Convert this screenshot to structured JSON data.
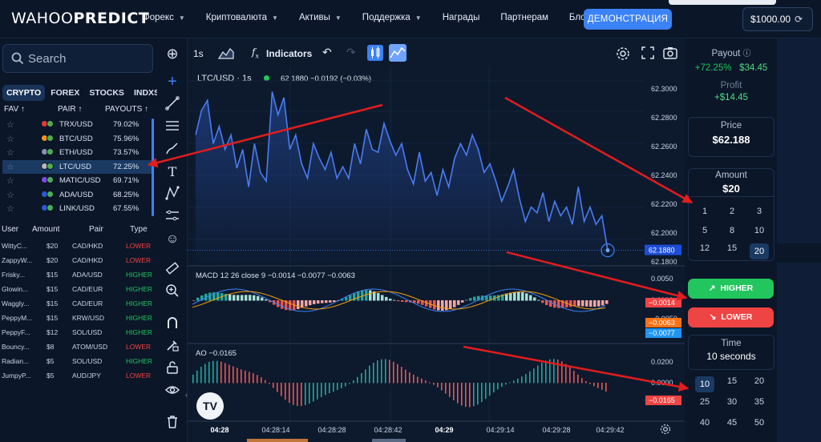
{
  "header": {
    "logo_part1": "WAHOO",
    "logo_part2": "PREDICT",
    "nav": [
      {
        "label": "Форекс",
        "dropdown": true
      },
      {
        "label": "Криптовалюта",
        "dropdown": true
      },
      {
        "label": "Активы",
        "dropdown": true
      },
      {
        "label": "Поддержка",
        "dropdown": true
      },
      {
        "label": "Награды",
        "dropdown": false
      },
      {
        "label": "Партнерам",
        "dropdown": false
      },
      {
        "label": "Блог",
        "dropdown": false
      }
    ],
    "demo_button": "ДЕМОНСТРАЦИЯ",
    "balance": "$1000.00",
    "refresh_icon": "refresh-icon"
  },
  "left": {
    "search_placeholder": "Search",
    "tabs": [
      "CRYPTO",
      "FOREX",
      "STOCKS",
      "INDXS"
    ],
    "active_tab": "CRYPTO",
    "columns": {
      "fav": "FAV ↑",
      "pair": "PAIR ↑",
      "payouts": "PAYOUTS ↑"
    },
    "pairs": [
      {
        "pair": "TRX/USD",
        "payout": "79.02%",
        "coin": "#e53935",
        "selected": false
      },
      {
        "pair": "BTC/USD",
        "payout": "75.96%",
        "coin": "#f7931a",
        "selected": false
      },
      {
        "pair": "ETH/USD",
        "payout": "73.57%",
        "coin": "#8a92b2",
        "selected": false
      },
      {
        "pair": "LTC/USD",
        "payout": "72.25%",
        "coin": "#b8b8b8",
        "selected": true
      },
      {
        "pair": "MATIC/USD",
        "payout": "69.71%",
        "coin": "#8247e5",
        "selected": false
      },
      {
        "pair": "ADA/USD",
        "payout": "68.25%",
        "coin": "#2a5bd7",
        "selected": false
      },
      {
        "pair": "LINK/USD",
        "payout": "67.55%",
        "coin": "#2a5ada",
        "selected": false
      }
    ],
    "trades_columns": {
      "user": "User",
      "amount": "Amount",
      "pair": "Pair",
      "type": "Type"
    },
    "trades": [
      {
        "user": "WittyC...",
        "amount": "$20",
        "pair": "CAD/HKD",
        "type": "LOWER"
      },
      {
        "user": "ZappyW...",
        "amount": "$20",
        "pair": "CAD/HKD",
        "type": "LOWER"
      },
      {
        "user": "Frisky...",
        "amount": "$15",
        "pair": "ADA/USD",
        "type": "HIGHER"
      },
      {
        "user": "Glowin...",
        "amount": "$15",
        "pair": "CAD/EUR",
        "type": "HIGHER"
      },
      {
        "user": "Waggly...",
        "amount": "$15",
        "pair": "CAD/EUR",
        "type": "HIGHER"
      },
      {
        "user": "PeppyM...",
        "amount": "$15",
        "pair": "KRW/USD",
        "type": "HIGHER"
      },
      {
        "user": "PeppyF...",
        "amount": "$12",
        "pair": "SOL/USD",
        "type": "HIGHER"
      },
      {
        "user": "Bouncy...",
        "amount": "$8",
        "pair": "ATOM/USD",
        "type": "LOWER"
      },
      {
        "user": "Radian...",
        "amount": "$5",
        "pair": "SOL/USD",
        "type": "HIGHER"
      },
      {
        "user": "JumpyP...",
        "amount": "$5",
        "pair": "AUD/JPY",
        "type": "LOWER"
      }
    ]
  },
  "chart": {
    "interval": "1s",
    "indicators_label": "Indicators",
    "symbol": "LTC/USD · 1s",
    "quote": "62.1880  −0.0192 (−0.03%)",
    "price_axis": [
      "62.3000",
      "62.2800",
      "62.2600",
      "62.2400",
      "62.2200",
      "62.2000",
      "62.1800"
    ],
    "last_price": "62.1880",
    "macd_label": "MACD 12 26 close 9   −0.0014   −0.0077   −0.0063",
    "macd_axis": [
      "0.0050",
      "0.0000",
      "−0.0050",
      "−0.0100"
    ],
    "macd_tags": [
      "−0.0014",
      "−0.0063",
      "−0.0077"
    ],
    "ao_label": "AO   −0.0165",
    "ao_axis": [
      "0.0200",
      "0.0000"
    ],
    "ao_tag": "−0.0165",
    "time_axis": [
      "04:28",
      "04:28:14",
      "04:28:28",
      "04:28:42",
      "04:29",
      "04:29:14",
      "04:29:28",
      "04:29:42"
    ],
    "time_axis_bold": [
      "04:28",
      "04:29"
    ],
    "price_series": [
      62.268,
      62.285,
      62.292,
      62.262,
      62.274,
      62.258,
      62.268,
      62.245,
      62.258,
      62.232,
      62.262,
      62.242,
      62.236,
      62.298,
      62.282,
      62.294,
      62.258,
      62.268,
      62.248,
      62.238,
      62.262,
      62.252,
      62.244,
      62.256,
      62.238,
      62.246,
      62.238,
      62.262,
      62.248,
      62.272,
      62.258,
      62.256,
      62.276,
      62.264,
      62.254,
      62.262,
      62.244,
      62.234,
      62.256,
      62.236,
      62.242,
      62.226,
      62.244,
      62.232,
      62.252,
      62.262,
      62.254,
      62.268,
      62.258,
      62.242,
      62.248,
      62.236,
      62.222,
      62.232,
      62.244,
      62.224,
      62.208,
      62.218,
      62.214,
      62.228,
      62.208,
      62.222,
      62.212,
      62.218,
      62.206,
      62.232,
      62.208,
      62.218,
      62.206,
      62.212,
      62.188
    ]
  },
  "trade": {
    "payout_label": "Payout",
    "payout_pct": "+72.25%",
    "payout_amount": "$34.45",
    "profit_label": "Profit",
    "profit_value": "+$14.45",
    "price_label": "Price",
    "price_value": "$62.188",
    "amount_label": "Amount",
    "amount_value": "$20",
    "amount_options": [
      "1",
      "2",
      "3",
      "5",
      "8",
      "10",
      "12",
      "15",
      "20"
    ],
    "amount_selected": "20",
    "higher_label": "HIGHER",
    "lower_label": "LOWER",
    "time_label": "Time",
    "time_value": "10 seconds",
    "time_options": [
      "10",
      "15",
      "20",
      "25",
      "30",
      "35",
      "40",
      "45",
      "50"
    ],
    "time_selected": "10"
  },
  "colors": {
    "accent": "#3b82f6",
    "higher": "#22c55e",
    "lower": "#ef4444",
    "annotation_arrow": "#e11d1d"
  }
}
